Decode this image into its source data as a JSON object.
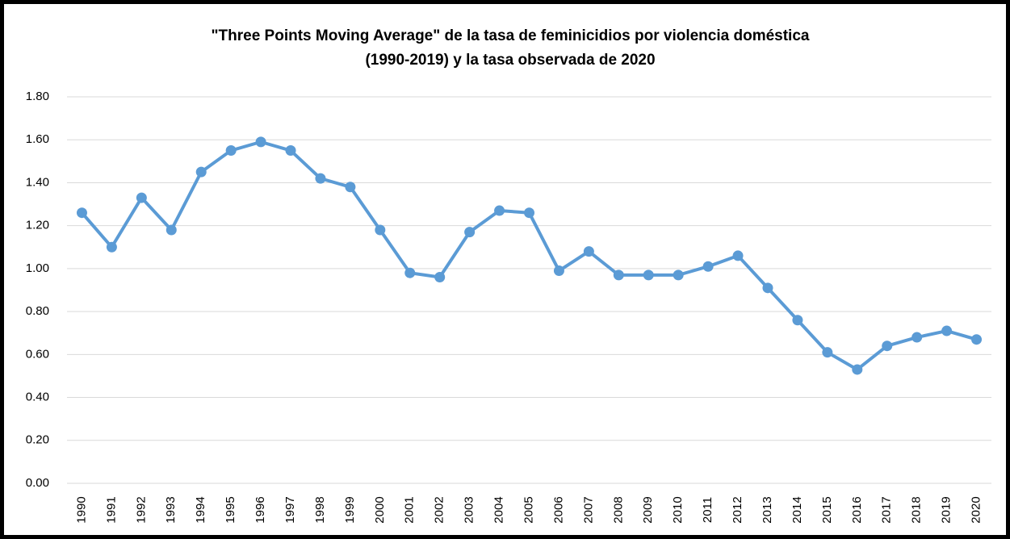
{
  "chart_data": {
    "type": "line",
    "title": [
      "\"Three Points Moving Average\" de la tasa de feminicidios por violencia doméstica",
      "(1990-2019) y la tasa observada de 2020"
    ],
    "categories": [
      "1990",
      "1991",
      "1992",
      "1993",
      "1994",
      "1995",
      "1996",
      "1997",
      "1998",
      "1999",
      "2000",
      "2001",
      "2002",
      "2003",
      "2004",
      "2005",
      "2006",
      "2007",
      "2008",
      "2009",
      "2010",
      "2011",
      "2012",
      "2013",
      "2014",
      "2015",
      "2016",
      "2017",
      "2018",
      "2019",
      "2020"
    ],
    "values": [
      1.26,
      1.1,
      1.33,
      1.18,
      1.45,
      1.55,
      1.59,
      1.55,
      1.42,
      1.38,
      1.18,
      0.98,
      0.96,
      1.17,
      1.27,
      1.26,
      0.99,
      1.08,
      0.97,
      0.97,
      0.97,
      1.01,
      1.06,
      0.91,
      0.76,
      0.61,
      0.53,
      0.64,
      0.68,
      0.71,
      0.67
    ],
    "color": "#5b9bd5",
    "ylim": [
      0,
      1.8
    ],
    "yticks": [
      {
        "value": 0,
        "label": "0.00"
      },
      {
        "value": 0.2,
        "label": "0.20"
      },
      {
        "value": 0.4,
        "label": "0.40"
      },
      {
        "value": 0.6,
        "label": "0.60"
      },
      {
        "value": 0.8,
        "label": "0.80"
      },
      {
        "value": 1,
        "label": "1.00"
      },
      {
        "value": 1.2,
        "label": "1.20"
      },
      {
        "value": 1.4,
        "label": "1.40"
      },
      {
        "value": 1.6,
        "label": "1.60"
      },
      {
        "value": 1.8,
        "label": "1.80"
      }
    ],
    "grid": true
  }
}
